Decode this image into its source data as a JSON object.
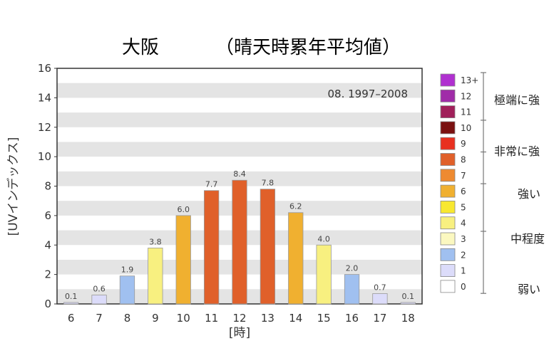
{
  "chart_data": {
    "type": "bar",
    "title": "大阪",
    "subtitle": "（晴天時累年平均値）",
    "annotation": "08. 1997–2008",
    "xlabel": "[時]",
    "ylabel": "[UVインデックス]",
    "ylim": [
      0,
      16
    ],
    "yticks": [
      "0",
      "2",
      "4",
      "6",
      "8",
      "10",
      "12",
      "14",
      "16"
    ],
    "categories": [
      "6",
      "7",
      "8",
      "9",
      "10",
      "11",
      "12",
      "13",
      "14",
      "15",
      "16",
      "17",
      "18"
    ],
    "values": [
      0.1,
      0.6,
      1.9,
      3.8,
      6.0,
      7.7,
      8.4,
      7.8,
      6.2,
      4.0,
      2.0,
      0.7,
      0.1
    ],
    "value_labels": [
      "0.1",
      "0.6",
      "1.9",
      "3.8",
      "6.0",
      "7.7",
      "8.4",
      "7.8",
      "6.2",
      "4.0",
      "2.0",
      "0.7",
      "0.1"
    ],
    "grid": "alternating horizontal bands",
    "background_band_color": "#e4e4e4",
    "legend": {
      "placement": "right",
      "levels": [
        {
          "label": "13+",
          "color": "#b030d0"
        },
        {
          "label": "12",
          "color": "#a02ca8"
        },
        {
          "label": "11",
          "color": "#a0205a"
        },
        {
          "label": "10",
          "color": "#7a1010"
        },
        {
          "label": "9",
          "color": "#e83020"
        },
        {
          "label": "8",
          "color": "#e0602a"
        },
        {
          "label": "7",
          "color": "#ee8a30"
        },
        {
          "label": "6",
          "color": "#f0b030"
        },
        {
          "label": "5",
          "color": "#f8e830"
        },
        {
          "label": "4",
          "color": "#f8f080"
        },
        {
          "label": "3",
          "color": "#fbf8c0"
        },
        {
          "label": "2",
          "color": "#a0c0f0"
        },
        {
          "label": "1",
          "color": "#dcdcfa"
        },
        {
          "label": "0",
          "color": "#ffffff"
        }
      ],
      "categories": [
        "極端に強",
        "非常に強",
        "強い",
        "中程度",
        "弱い"
      ]
    }
  }
}
